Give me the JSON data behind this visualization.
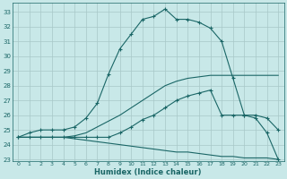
{
  "xlabel": "Humidex (Indice chaleur)",
  "background_color": "#c8e8e8",
  "grid_color": "#a8c8c8",
  "line_color": "#1a6666",
  "xlim": [
    -0.5,
    23.5
  ],
  "ylim": [
    22.9,
    33.6
  ],
  "yticks": [
    23,
    24,
    25,
    26,
    27,
    28,
    29,
    30,
    31,
    32,
    33
  ],
  "xticks": [
    0,
    1,
    2,
    3,
    4,
    5,
    6,
    7,
    8,
    9,
    10,
    11,
    12,
    13,
    14,
    15,
    16,
    17,
    18,
    19,
    20,
    21,
    22,
    23
  ],
  "curve1_x": [
    0,
    1,
    2,
    3,
    4,
    5,
    6,
    7,
    8,
    9,
    10,
    11,
    12,
    13,
    14,
    15,
    16,
    17,
    18,
    19,
    20,
    21,
    22,
    23
  ],
  "curve1_y": [
    24.5,
    24.8,
    25.0,
    25.0,
    25.0,
    25.2,
    25.8,
    26.8,
    28.8,
    30.5,
    31.5,
    32.5,
    32.7,
    33.2,
    32.5,
    32.5,
    32.3,
    31.9,
    31.0,
    28.5,
    26.0,
    25.8,
    24.8,
    23.0
  ],
  "curve1_style": "solid_marker",
  "curve2_x": [
    0,
    1,
    2,
    3,
    4,
    5,
    6,
    7,
    8,
    9,
    10,
    11,
    12,
    13,
    14,
    15,
    16,
    17,
    18,
    19,
    20,
    21,
    22,
    23
  ],
  "curve2_y": [
    24.5,
    24.5,
    24.5,
    24.5,
    24.5,
    24.6,
    24.8,
    25.2,
    25.6,
    26.0,
    26.5,
    27.0,
    27.5,
    28.0,
    28.3,
    28.5,
    28.6,
    28.7,
    28.7,
    28.7,
    28.7,
    28.7,
    28.7,
    28.7
  ],
  "curve2_style": "solid_nomarker",
  "curve3_x": [
    0,
    1,
    2,
    3,
    4,
    5,
    6,
    7,
    8,
    9,
    10,
    11,
    12,
    13,
    14,
    15,
    16,
    17,
    18,
    19,
    20,
    21,
    22,
    23
  ],
  "curve3_y": [
    24.5,
    24.5,
    24.5,
    24.5,
    24.5,
    24.5,
    24.5,
    24.5,
    24.5,
    24.8,
    25.2,
    25.7,
    26.0,
    26.5,
    27.0,
    27.3,
    27.5,
    27.7,
    26.0,
    26.0,
    26.0,
    26.0,
    25.8,
    25.0
  ],
  "curve3_style": "solid_marker",
  "curve4_x": [
    0,
    1,
    2,
    3,
    4,
    5,
    6,
    7,
    8,
    9,
    10,
    11,
    12,
    13,
    14,
    15,
    16,
    17,
    18,
    19,
    20,
    21,
    22,
    23
  ],
  "curve4_y": [
    24.5,
    24.5,
    24.5,
    24.5,
    24.5,
    24.4,
    24.3,
    24.2,
    24.1,
    24.0,
    23.9,
    23.8,
    23.7,
    23.6,
    23.5,
    23.5,
    23.4,
    23.3,
    23.2,
    23.2,
    23.1,
    23.1,
    23.1,
    23.0
  ],
  "curve4_style": "solid_nomarker"
}
